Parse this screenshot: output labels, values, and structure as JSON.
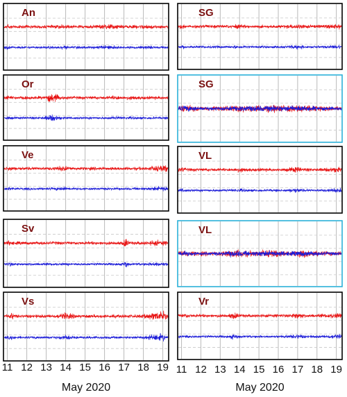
{
  "chart_data": [
    {
      "type": "line",
      "columns": [
        {
          "x_ticks": [
            "11",
            "12",
            "13",
            "14",
            "15",
            "16",
            "17",
            "18",
            "19"
          ],
          "xlabel": "May 2020",
          "panels": [
            {
              "label": "An",
              "frame_color": "#000000",
              "style": "offset",
              "bursts": [
                [
                  11.0,
                  2.0,
                  0.12
                ],
                [
                  13.9,
                  1.6,
                  0.25
                ],
                [
                  16.2,
                  1.8,
                  0.5
                ],
                [
                  18.1,
                  1.5,
                  0.4
                ]
              ]
            },
            {
              "label": "Or",
              "frame_color": "#000000",
              "style": "offset",
              "bursts": [
                [
                  11.0,
                  1.6,
                  0.12
                ],
                [
                  13.3,
                  3.0,
                  0.35
                ],
                [
                  16.6,
                  1.5,
                  0.3
                ],
                [
                  17.4,
                  1.4,
                  0.3
                ]
              ]
            },
            {
              "label": "Ve",
              "frame_color": "#000000",
              "style": "offset",
              "bursts": [
                [
                  11.1,
                  1.8,
                  0.15
                ],
                [
                  13.8,
                  1.8,
                  0.4
                ],
                [
                  18.8,
                  2.0,
                  0.5
                ],
                [
                  19.3,
                  1.8,
                  0.3
                ]
              ]
            },
            {
              "label": "Sv",
              "frame_color": "#000000",
              "style": "offset",
              "bursts": [
                [
                  11.1,
                  2.0,
                  0.1
                ],
                [
                  17.1,
                  3.2,
                  0.12
                ],
                [
                  18.7,
                  1.8,
                  0.5
                ]
              ]
            },
            {
              "label": "Vs",
              "frame_color": "#000000",
              "style": "offset",
              "bursts": [
                [
                  11.2,
                  2.0,
                  0.15
                ],
                [
                  14.0,
                  2.0,
                  0.4
                ],
                [
                  18.6,
                  2.4,
                  0.5
                ],
                [
                  19.0,
                  2.6,
                  0.2
                ]
              ]
            }
          ]
        },
        {
          "x_ticks": [
            "11",
            "12",
            "13",
            "14",
            "15",
            "16",
            "17",
            "18",
            "19"
          ],
          "xlabel": "May 2020",
          "panels": [
            {
              "label": "SG",
              "frame_color": "#000000",
              "style": "offset",
              "bursts": [
                [
                  11.0,
                  1.8,
                  0.15
                ],
                [
                  13.9,
                  1.5,
                  0.3
                ],
                [
                  17.0,
                  1.8,
                  0.4
                ],
                [
                  19.0,
                  1.7,
                  0.5
                ]
              ]
            },
            {
              "label": "SG",
              "frame_color": "#2ab0d8",
              "style": "overlay",
              "bursts": [
                [
                  11.2,
                  1.8,
                  0.4
                ],
                [
                  14.2,
                  1.6,
                  0.8
                ],
                [
                  15.6,
                  1.6,
                  0.9
                ],
                [
                  17.2,
                  1.7,
                  0.8
                ]
              ]
            },
            {
              "label": "VL",
              "frame_color": "#000000",
              "style": "offset",
              "bursts": [
                [
                  11.0,
                  1.7,
                  0.15
                ],
                [
                  14.0,
                  1.6,
                  0.35
                ],
                [
                  16.9,
                  2.0,
                  0.3
                ],
                [
                  19.0,
                  1.8,
                  0.5
                ]
              ]
            },
            {
              "label": "VL",
              "frame_color": "#2ab0d8",
              "style": "overlay",
              "bursts": [
                [
                  11.1,
                  1.6,
                  0.4
                ],
                [
                  13.8,
                  2.0,
                  0.5
                ],
                [
                  15.5,
                  1.8,
                  0.8
                ],
                [
                  17.4,
                  1.6,
                  0.7
                ]
              ]
            },
            {
              "label": "Vr",
              "frame_color": "#000000",
              "style": "offset",
              "bursts": [
                [
                  11.2,
                  1.5,
                  0.2
                ],
                [
                  13.7,
                  2.4,
                  0.2
                ],
                [
                  17.0,
                  2.0,
                  0.3
                ],
                [
                  19.0,
                  1.8,
                  0.5
                ]
              ]
            }
          ]
        }
      ],
      "series": [
        {
          "color": "#e81414"
        },
        {
          "color": "#1c1cd8"
        }
      ],
      "x_range": [
        10.8,
        19.3
      ],
      "grid": true
    }
  ]
}
